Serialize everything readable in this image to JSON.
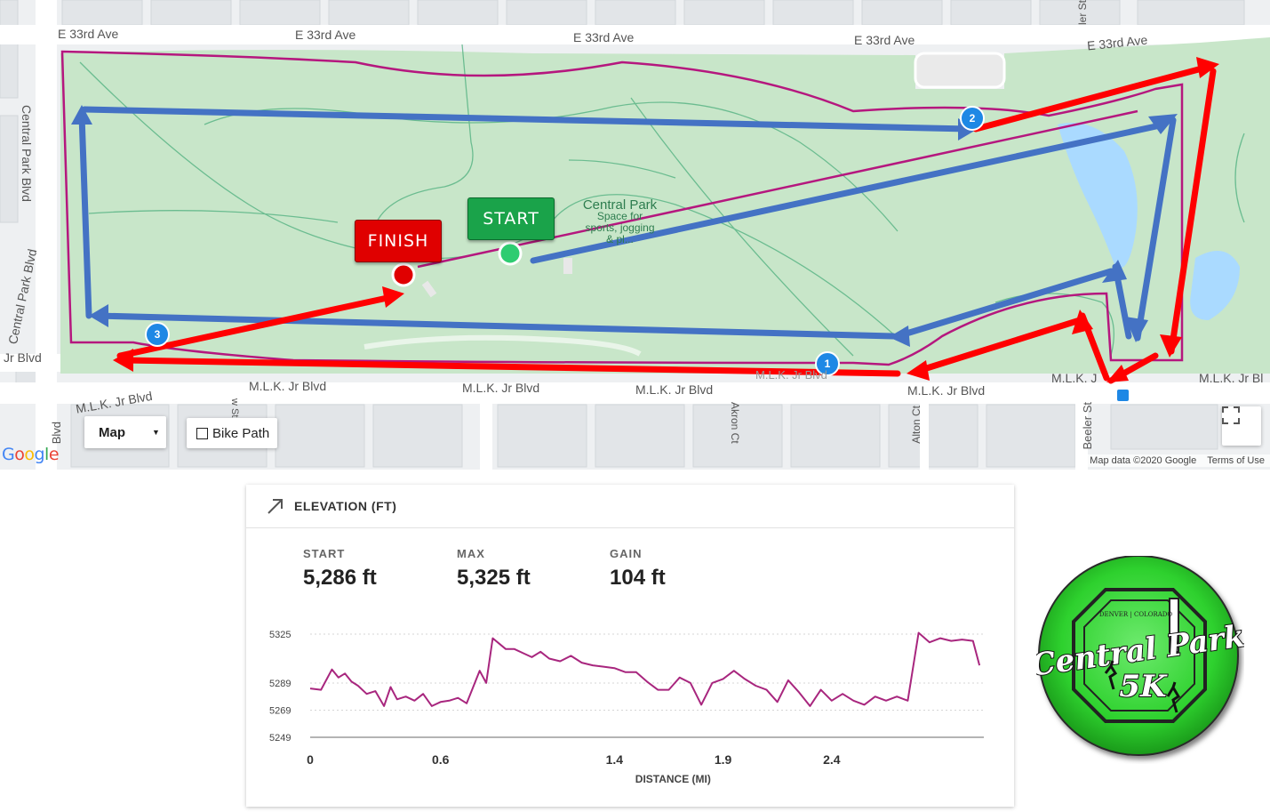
{
  "map": {
    "street_labels": {
      "e33_1": "E 33rd Ave",
      "e33_2": "E 33rd Ave",
      "e33_3": "E 33rd Ave",
      "e33_4": "E 33rd Ave",
      "e33_5": "E 33rd Ave",
      "central_park_blvd_1": "Central Park Blvd",
      "central_park_blvd_2": "Central Park Blvd",
      "mlk_left": "Jr Blvd",
      "mlk_1": "M.L.K. Jr Blvd",
      "mlk_2": "M.L.K. Jr Blvd",
      "mlk_3": "M.L.K. Jr Blvd",
      "mlk_4": "M.L.K. Jr Blvd",
      "mlk_5": "M.L.K. Jr Blvd",
      "mlk_6": "M.L.K. Jr Bl",
      "mlk_7": "M.L.K. J",
      "mlk_faded": "M.L.K. Jr Blvd",
      "akron_ct": "Akron Ct",
      "alton_ct": "Alton Ct",
      "beeler_st": "Beeler St",
      "w_st": "w St",
      "blvd_bottom": "Blvd",
      "ler_st": "ler St"
    },
    "park": {
      "name": "Central Park",
      "sub_line1": "Space for",
      "sub_line2": "sports, jogging",
      "sub_line3": "& pl..."
    },
    "markers": {
      "start_label": "START",
      "finish_label": "FINISH",
      "waypoint_1": "1",
      "waypoint_2": "2",
      "waypoint_3": "3"
    },
    "controls": {
      "map_type_label": "Map",
      "bike_path_label": "Bike Path",
      "fullscreen_icon": "fullscreen-icon"
    },
    "google_logo_text": "Google",
    "attribution": {
      "map_data": "Map data ©2020 Google",
      "terms": "Terms of Use"
    },
    "colors": {
      "park": "#c8e6c9",
      "boundary": "#b5177e",
      "route_blue": "#4472c4",
      "route_red": "#ff0000",
      "start": "#1aa34a",
      "finish": "#e00000",
      "water": "#aadaff"
    }
  },
  "elevation": {
    "title": "ELEVATION (FT)",
    "icon": "trend-arrow-icon",
    "stats": [
      {
        "label": "START",
        "value": "5,286 ft"
      },
      {
        "label": "MAX",
        "value": "5,325 ft"
      },
      {
        "label": "GAIN",
        "value": "104 ft"
      }
    ]
  },
  "chart_data": {
    "type": "line",
    "title": "ELEVATION (FT)",
    "xlabel": "DISTANCE (MI)",
    "ylabel": "",
    "x_ticks": [
      "0",
      "0.6",
      "1.4",
      "1.9",
      "2.4"
    ],
    "y_ticks": [
      "5325",
      "5289",
      "5269",
      "5249"
    ],
    "ylim": [
      5249,
      5325
    ],
    "xlim": [
      0,
      3.1
    ],
    "color": "#a8267e",
    "series": [
      {
        "x": [
          0,
          0.05,
          0.1,
          0.13,
          0.16,
          0.19,
          0.22,
          0.26,
          0.3,
          0.34,
          0.37,
          0.4,
          0.44,
          0.48,
          0.52,
          0.56,
          0.6,
          0.64,
          0.68,
          0.72,
          0.75,
          0.78,
          0.81,
          0.84,
          0.87,
          0.9,
          0.94,
          0.98,
          1.02,
          1.06,
          1.1,
          1.15,
          1.2,
          1.25,
          1.3,
          1.35,
          1.4,
          1.45,
          1.5,
          1.55,
          1.6,
          1.65,
          1.7,
          1.75,
          1.8,
          1.85,
          1.9,
          1.95,
          2.0,
          2.05,
          2.1,
          2.15,
          2.2,
          2.25,
          2.3,
          2.35,
          2.4,
          2.45,
          2.5,
          2.55,
          2.6,
          2.65,
          2.7,
          2.75,
          2.8,
          2.85,
          2.9,
          2.95,
          3.0,
          3.05,
          3.08
        ],
        "y": [
          5285,
          5284,
          5299,
          5293,
          5296,
          5290,
          5287,
          5281,
          5283,
          5272,
          5286,
          5277,
          5279,
          5276,
          5281,
          5272,
          5275,
          5276,
          5278,
          5274,
          5286,
          5298,
          5289,
          5322,
          5318,
          5314,
          5314,
          5311,
          5308,
          5312,
          5307,
          5305,
          5309,
          5304,
          5302,
          5301,
          5300,
          5297,
          5297,
          5290,
          5284,
          5284,
          5293,
          5289,
          5273,
          5289,
          5292,
          5298,
          5292,
          5287,
          5284,
          5275,
          5291,
          5282,
          5272,
          5284,
          5276,
          5281,
          5276,
          5273,
          5279,
          5276,
          5279,
          5276,
          5326,
          5319,
          5322,
          5320,
          5321,
          5320,
          5302
        ]
      }
    ]
  },
  "badge": {
    "line1": "DENVER | COLORADO",
    "line2": "Central Park",
    "line3": "5K"
  }
}
